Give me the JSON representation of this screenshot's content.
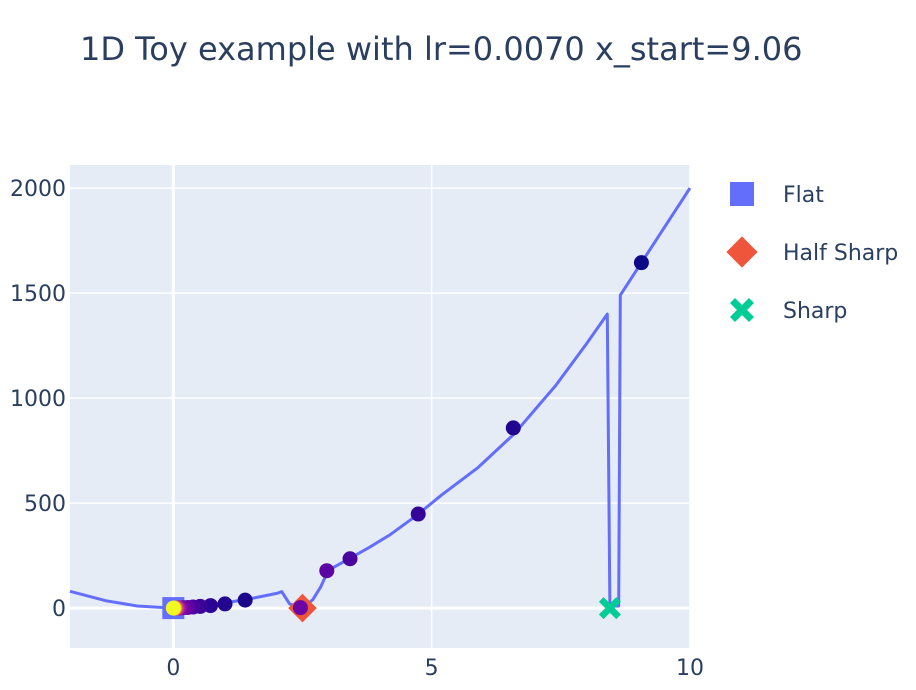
{
  "chart_data": {
    "type": "scatter",
    "title": "1D Toy example with lr=0.0070 x_start=9.06",
    "xlabel": "",
    "ylabel": "",
    "xlim": [
      -2,
      10
    ],
    "ylim": [
      -190,
      2110
    ],
    "x_ticks": [
      0,
      5,
      10
    ],
    "y_ticks": [
      0,
      500,
      1000,
      1500,
      2000
    ],
    "grid": true,
    "legend_position": "right",
    "colors": {
      "plot_bg": "#e5ecf6",
      "grid": "#ffffff",
      "curve": "#636efa",
      "flat": "#636efa",
      "half_sharp": "#ef553b",
      "sharp": "#00cc96"
    },
    "curve": {
      "x": [
        -2,
        -1.3,
        -0.7,
        0,
        0.5,
        1.0,
        1.5,
        2.0,
        2.1,
        2.25,
        2.5,
        2.7,
        2.85,
        3.0,
        3.4,
        3.8,
        4.2,
        4.7,
        5.2,
        5.9,
        6.6,
        7.4,
        8.0,
        8.4,
        8.45,
        8.55,
        8.62,
        8.65,
        9.06,
        10.0
      ],
      "y": [
        80,
        35,
        10,
        0,
        8,
        25,
        45,
        70,
        78,
        20,
        0,
        40,
        100,
        180,
        235,
        290,
        350,
        440,
        540,
        670,
        830,
        1060,
        1260,
        1400,
        10,
        10,
        10,
        1490,
        1645,
        2000
      ]
    },
    "trajectory": {
      "x": [
        9.06,
        6.58,
        4.74,
        3.42,
        2.97,
        2.46,
        1.39,
        1.0,
        0.72,
        0.52,
        0.38,
        0.28,
        0.2,
        0.14,
        0.1,
        0.07,
        0.05,
        0.03,
        0.02,
        0.01,
        0.0
      ],
      "y": [
        1645,
        858,
        448,
        235,
        178,
        2,
        38,
        20,
        12,
        8,
        5,
        3,
        2,
        1,
        1,
        0,
        0,
        0,
        0,
        0,
        0
      ]
    },
    "minima": [
      {
        "name": "Flat",
        "x": 0,
        "y": 0,
        "symbol": "square"
      },
      {
        "name": "Half Sharp",
        "x": 2.5,
        "y": 0,
        "symbol": "diamond"
      },
      {
        "name": "Sharp",
        "x": 8.45,
        "y": 0,
        "symbol": "x"
      }
    ]
  }
}
